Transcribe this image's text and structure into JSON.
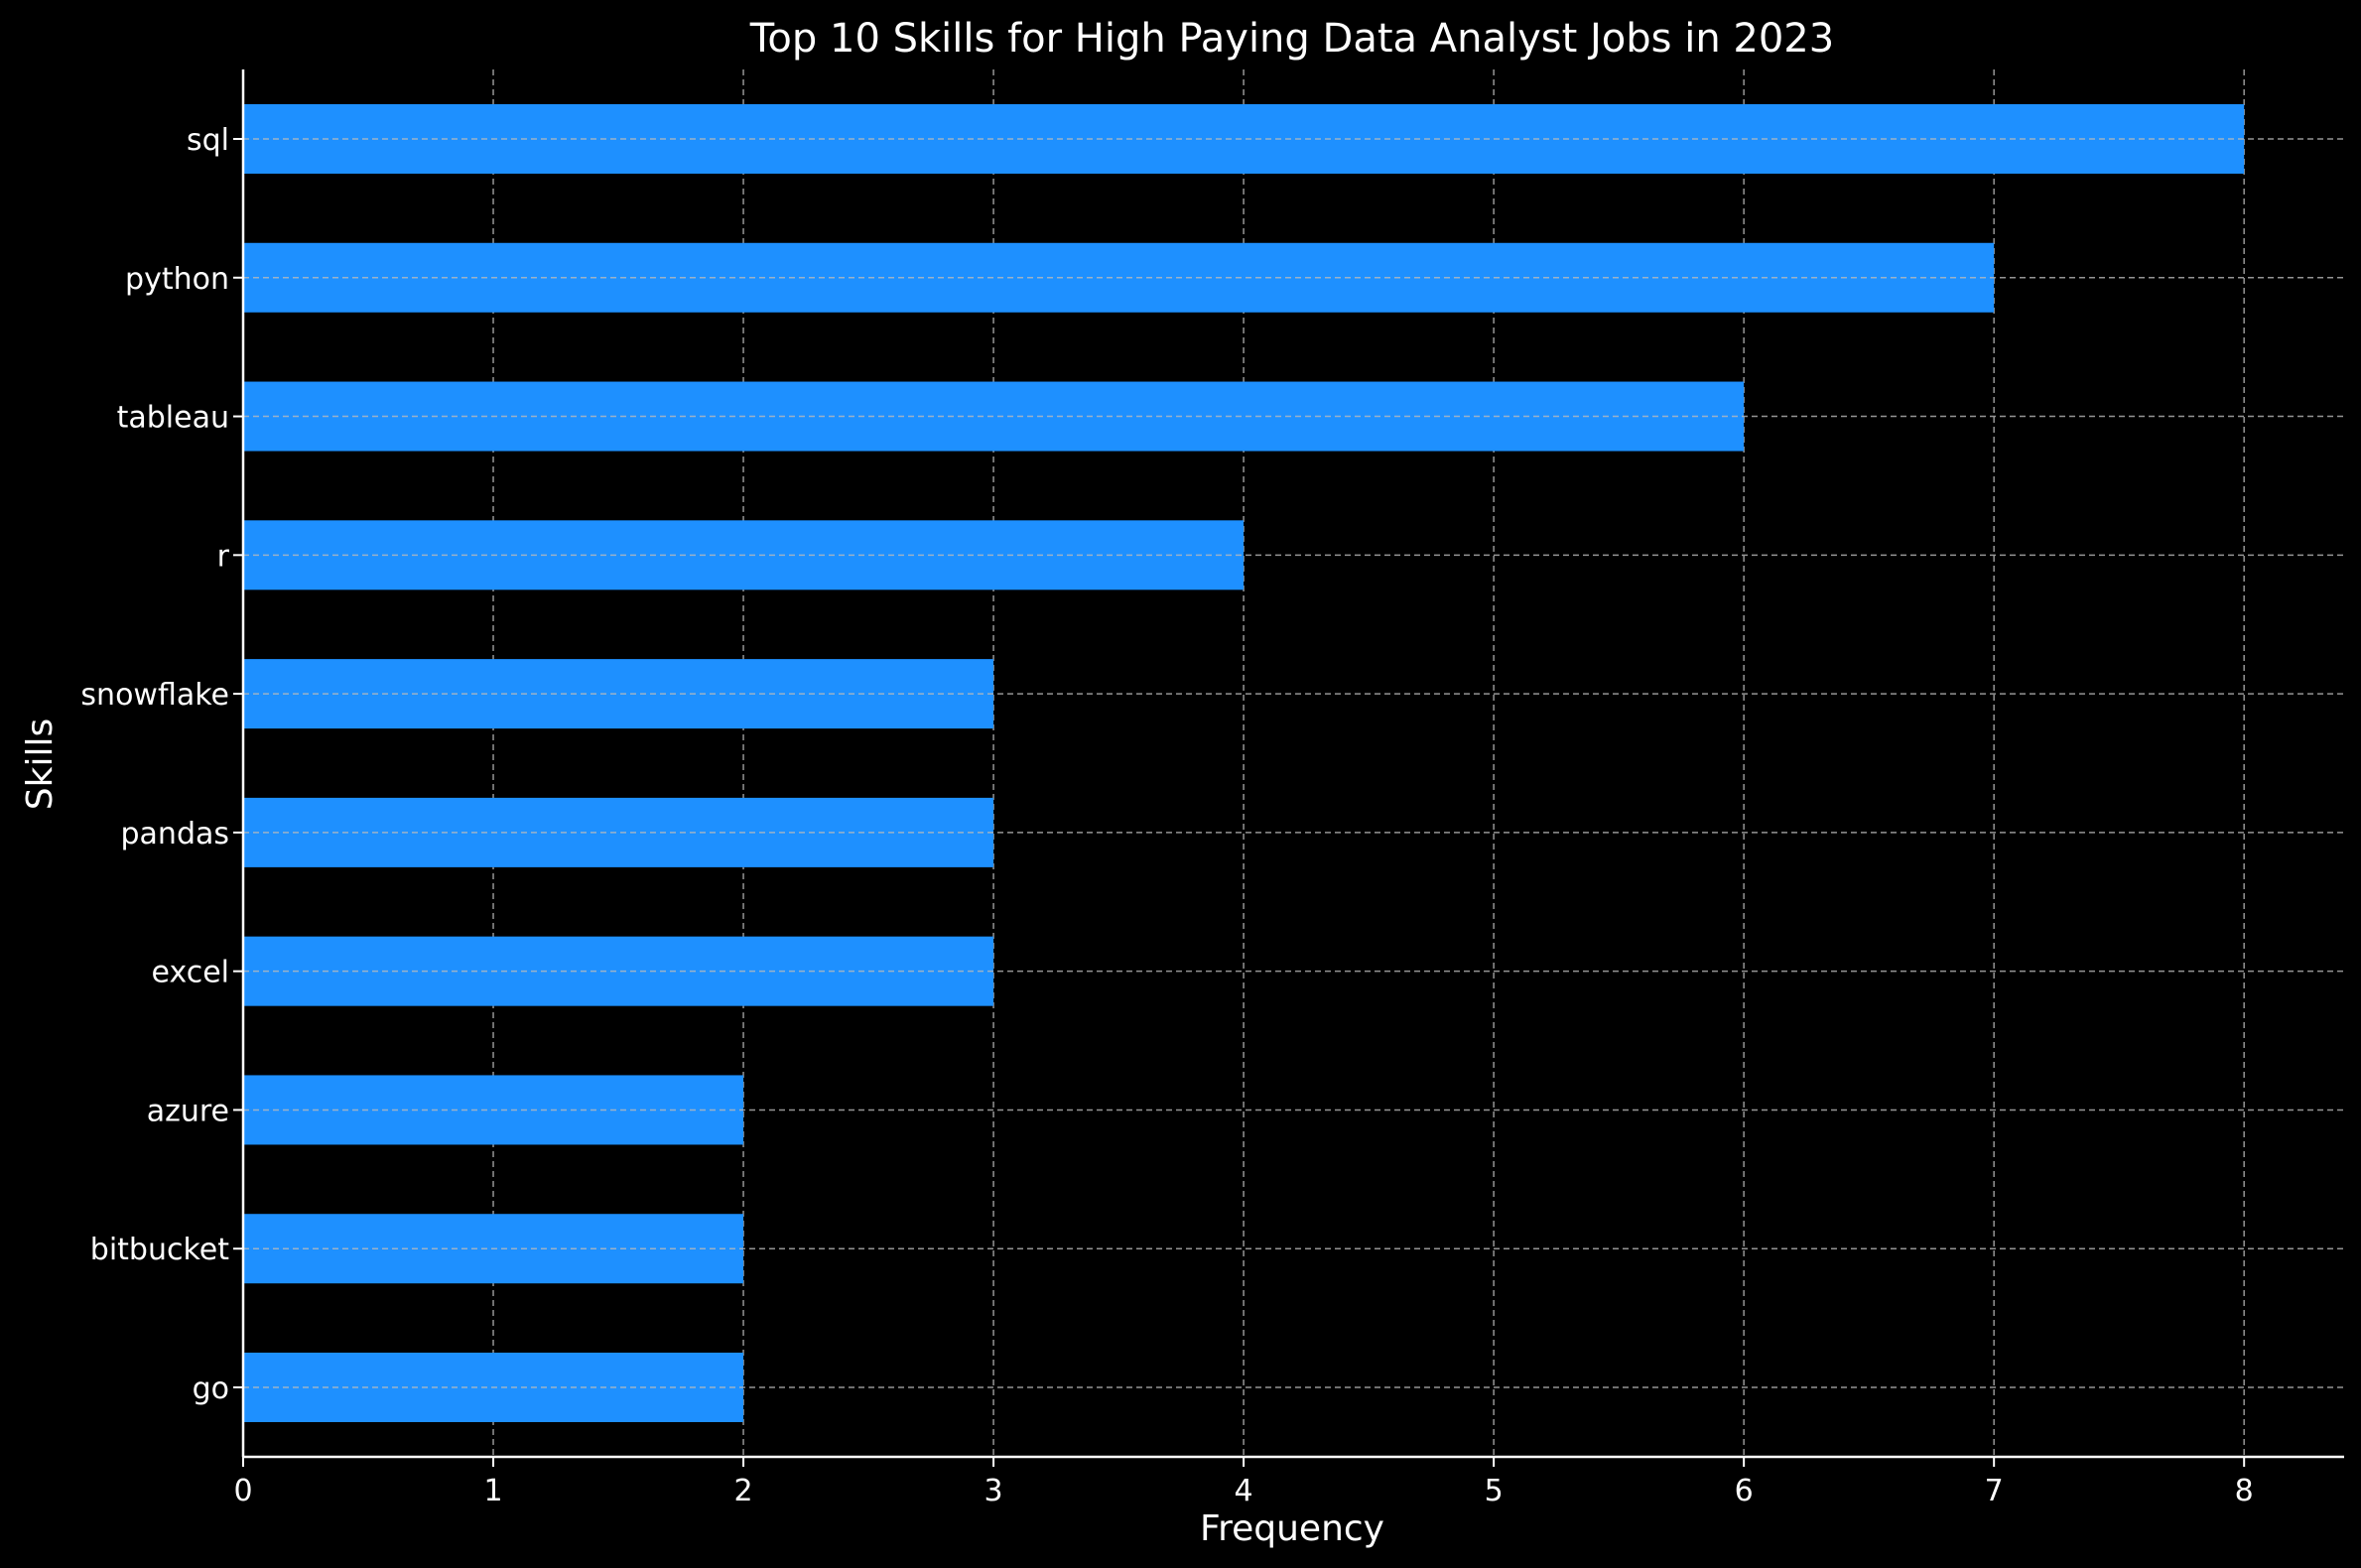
{
  "chart_data": {
    "type": "bar",
    "orientation": "horizontal",
    "title": "Top 10 Skills for High Paying Data Analyst Jobs in 2023",
    "xlabel": "Frequency",
    "ylabel": "Skills",
    "categories": [
      "sql",
      "python",
      "tableau",
      "r",
      "snowflake",
      "pandas",
      "excel",
      "azure",
      "bitbucket",
      "go"
    ],
    "values": [
      8,
      7,
      6,
      4,
      3,
      3,
      3,
      2,
      2,
      2
    ],
    "xlim": [
      0,
      8.4
    ],
    "xticks": [
      "0",
      "1",
      "2",
      "3",
      "4",
      "5",
      "6",
      "7",
      "8"
    ],
    "grid": true,
    "bar_color": "#1E90FF",
    "background_color": "#000000",
    "text_color": "#ffffff"
  }
}
